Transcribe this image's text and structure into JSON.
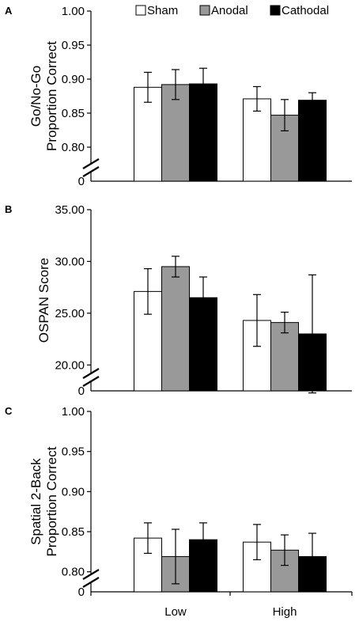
{
  "chart_data": [
    {
      "type": "bar",
      "panel_label": "A",
      "ylabel_lines": [
        "Go/No-Go",
        "Proportion Correct"
      ],
      "categories": [
        "Low",
        "High"
      ],
      "ylim": [
        0.75,
        1.0
      ],
      "yticks": [
        "1.00",
        "0.95",
        "0.90",
        "0.85",
        "0.80"
      ],
      "axis_break": true,
      "baseline_label": "0",
      "legend": {
        "placement": "top-right"
      },
      "series": [
        {
          "name": "Sham",
          "color": "#ffffff",
          "values": [
            0.888,
            0.871
          ],
          "errors": [
            0.022,
            0.018
          ]
        },
        {
          "name": "Anodal",
          "color": "#999999",
          "values": [
            0.892,
            0.847
          ],
          "errors": [
            0.022,
            0.023
          ]
        },
        {
          "name": "Cathodal",
          "color": "#000000",
          "values": [
            0.893,
            0.869
          ],
          "errors": [
            0.023,
            0.011
          ]
        }
      ]
    },
    {
      "type": "bar",
      "panel_label": "B",
      "ylabel_lines": [
        "OSPAN Score"
      ],
      "categories": [
        "Low",
        "High"
      ],
      "ylim": [
        17.5,
        35.0
      ],
      "yticks": [
        "35.00",
        "30.00",
        "25.00",
        "20.00"
      ],
      "axis_break": true,
      "baseline_label": "0",
      "series": [
        {
          "name": "Sham",
          "color": "#ffffff",
          "values": [
            27.1,
            24.3
          ],
          "errors": [
            2.2,
            2.5
          ]
        },
        {
          "name": "Anodal",
          "color": "#999999",
          "values": [
            29.5,
            24.1
          ],
          "errors": [
            1.0,
            1.0
          ]
        },
        {
          "name": "Cathodal",
          "color": "#000000",
          "values": [
            26.5,
            23.0
          ],
          "errors": [
            2.0,
            5.7
          ]
        }
      ]
    },
    {
      "type": "bar",
      "panel_label": "C",
      "ylabel_lines": [
        "Spatial 2-Back",
        "Proportion Correct"
      ],
      "categories": [
        "Low",
        "High"
      ],
      "ylim": [
        0.775,
        1.0
      ],
      "yticks": [
        "1.00",
        "0.95",
        "0.90",
        "0.85",
        "0.80"
      ],
      "axis_break": true,
      "baseline_label": "0",
      "xticks_shown": true,
      "series": [
        {
          "name": "Sham",
          "color": "#ffffff",
          "values": [
            0.842,
            0.837
          ],
          "errors": [
            0.019,
            0.022
          ]
        },
        {
          "name": "Anodal",
          "color": "#999999",
          "values": [
            0.819,
            0.827
          ],
          "errors": [
            0.034,
            0.019
          ]
        },
        {
          "name": "Cathodal",
          "color": "#000000",
          "values": [
            0.84,
            0.819
          ],
          "errors": [
            0.021,
            0.029
          ]
        }
      ]
    }
  ]
}
